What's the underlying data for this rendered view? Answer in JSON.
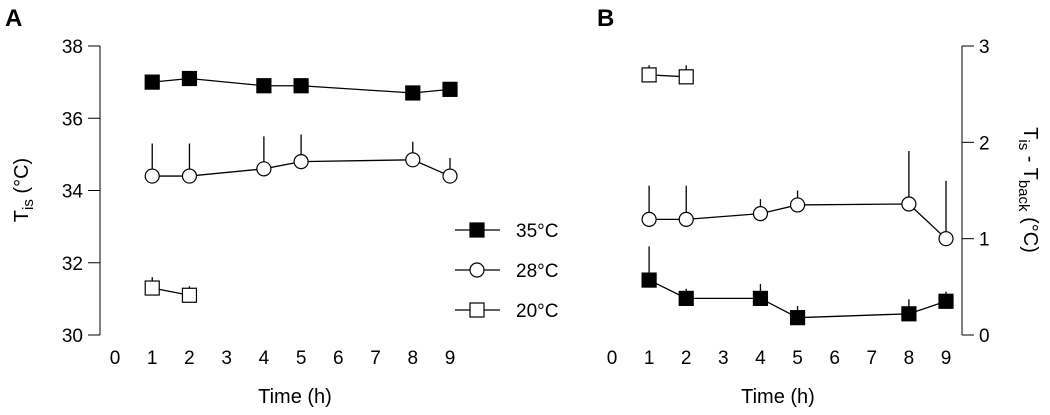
{
  "chart_data": [
    {
      "panel_label": "A",
      "type": "scatter",
      "xlabel": "Time (h)",
      "ylabel_main": "T",
      "ylabel_sub": "is",
      "ylabel_unit": " (°C)",
      "xlim": [
        0,
        9
      ],
      "ylim": [
        30,
        38
      ],
      "xticks": [
        "0",
        "1",
        "2",
        "3",
        "4",
        "5",
        "6",
        "7",
        "8",
        "9"
      ],
      "yticks": [
        "30",
        "32",
        "34",
        "36",
        "38"
      ],
      "grid": false,
      "legend_position": "lower-right",
      "series": [
        {
          "name": "35°C",
          "marker": "filled-square",
          "x": [
            1,
            2,
            4,
            5,
            8,
            9
          ],
          "y": [
            37.0,
            37.1,
            36.9,
            36.9,
            36.7,
            36.8
          ],
          "err": [
            0.1,
            0.15,
            0.1,
            0.1,
            0.05,
            0.05
          ]
        },
        {
          "name": "28°C",
          "marker": "open-circle",
          "x": [
            1,
            2,
            4,
            5,
            8,
            9
          ],
          "y": [
            34.4,
            34.4,
            34.6,
            34.8,
            34.85,
            34.4
          ],
          "err": [
            0.9,
            0.9,
            0.9,
            0.75,
            0.5,
            0.5
          ]
        },
        {
          "name": "20°C",
          "marker": "open-square",
          "x": [
            1,
            2
          ],
          "y": [
            31.3,
            31.1
          ],
          "err": [
            0.3,
            0.25
          ]
        }
      ]
    },
    {
      "panel_label": "B",
      "type": "scatter",
      "xlabel": "Time (h)",
      "ylabel_main_1": "T",
      "ylabel_sub_1": "is",
      "ylabel_mid": " - T",
      "ylabel_sub_2": "back",
      "ylabel_unit": " (°C)",
      "xlim": [
        0,
        9
      ],
      "ylim": [
        0,
        3
      ],
      "xticks": [
        "0",
        "1",
        "2",
        "3",
        "4",
        "5",
        "6",
        "7",
        "8",
        "9"
      ],
      "yticks": [
        "0",
        "1",
        "2",
        "3"
      ],
      "grid": false,
      "series": [
        {
          "name": "35°C",
          "marker": "filled-square",
          "x": [
            1,
            2,
            4,
            5,
            8,
            9
          ],
          "y": [
            0.57,
            0.38,
            0.38,
            0.18,
            0.22,
            0.35
          ],
          "err": [
            0.35,
            0.1,
            0.15,
            0.12,
            0.15,
            0.1
          ]
        },
        {
          "name": "28°C",
          "marker": "open-circle",
          "x": [
            1,
            2,
            4,
            5,
            8,
            9
          ],
          "y": [
            1.2,
            1.2,
            1.26,
            1.35,
            1.36,
            1.0
          ],
          "err": [
            0.35,
            0.35,
            0.15,
            0.15,
            0.55,
            0.6
          ]
        },
        {
          "name": "20°C",
          "marker": "open-square",
          "x": [
            1,
            2
          ],
          "y": [
            2.7,
            2.68
          ],
          "err": [
            0.1,
            0.12
          ]
        }
      ]
    }
  ]
}
